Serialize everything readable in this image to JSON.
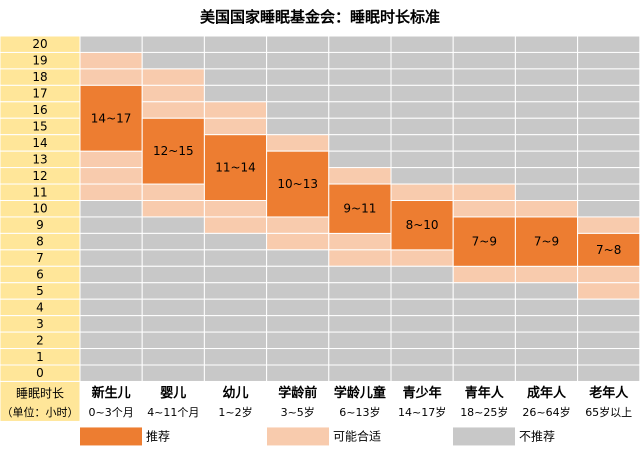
{
  "chart_data": {
    "type": "table",
    "title": "美国国家睡眠基金会：睡眠时长标准",
    "y_values": [
      20,
      19,
      18,
      17,
      16,
      15,
      14,
      13,
      12,
      11,
      10,
      9,
      8,
      7,
      6,
      5,
      4,
      3,
      2,
      1,
      0
    ],
    "row_label": "睡眠时长",
    "unit_label": "（单位：小时）",
    "groups": [
      {
        "name": "新生儿",
        "age": "0~3个月",
        "rec_label": "14~17",
        "recommended": [
          14,
          17
        ],
        "acceptable": [
          11,
          19
        ]
      },
      {
        "name": "婴儿",
        "age": "4~11个月",
        "rec_label": "12~15",
        "recommended": [
          12,
          15
        ],
        "acceptable": [
          10,
          18
        ]
      },
      {
        "name": "幼儿",
        "age": "1~2岁",
        "rec_label": "11~14",
        "recommended": [
          11,
          14
        ],
        "acceptable": [
          9,
          16
        ]
      },
      {
        "name": "学龄前",
        "age": "3~5岁",
        "rec_label": "10~13",
        "recommended": [
          10,
          13
        ],
        "acceptable": [
          8,
          14
        ]
      },
      {
        "name": "学龄儿童",
        "age": "6~13岁",
        "rec_label": "9~11",
        "recommended": [
          9,
          11
        ],
        "acceptable": [
          7,
          12
        ]
      },
      {
        "name": "青少年",
        "age": "14~17岁",
        "rec_label": "8~10",
        "recommended": [
          8,
          10
        ],
        "acceptable": [
          7,
          11
        ]
      },
      {
        "name": "青年人",
        "age": "18~25岁",
        "rec_label": "7~9",
        "recommended": [
          7,
          9
        ],
        "acceptable": [
          6,
          11
        ]
      },
      {
        "name": "成年人",
        "age": "26~64岁",
        "rec_label": "7~9",
        "recommended": [
          7,
          9
        ],
        "acceptable": [
          6,
          10
        ]
      },
      {
        "name": "老年人",
        "age": "65岁以上",
        "rec_label": "7~8",
        "recommended": [
          7,
          8
        ],
        "acceptable": [
          5,
          9
        ]
      }
    ],
    "legend": [
      {
        "label": "推荐",
        "color": "#ed7d31"
      },
      {
        "label": "可能合适",
        "color": "#f8cbad"
      },
      {
        "label": "不推荐",
        "color": "#c8c8c8"
      }
    ],
    "colors": {
      "recommended": "#ed7d31",
      "acceptable": "#f8cbad",
      "not_recommended": "#c8c8c8",
      "label_column": "#ffe699",
      "grid": "#ffffff"
    }
  }
}
